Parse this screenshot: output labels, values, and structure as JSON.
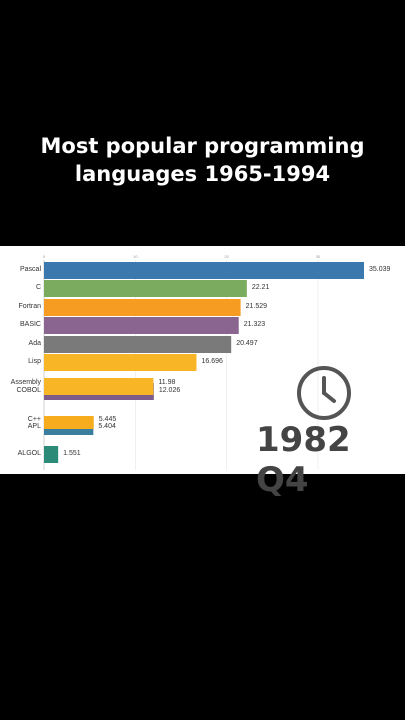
{
  "header": {
    "title_line1": "Most popular programming",
    "title_line2": "languages 1965-1994"
  },
  "period_label": "1982 Q4",
  "icons": {
    "clock": "clock-icon"
  },
  "colors": {
    "background": "#000000",
    "panel": "#ffffff",
    "period_text": "#444444",
    "clock": "#555555"
  },
  "chart_data": {
    "type": "bar",
    "orientation": "horizontal",
    "x_ticks": [
      "0",
      "10",
      "20",
      "30"
    ],
    "xlim": [
      0,
      35
    ],
    "bars": [
      {
        "label": "Pascal",
        "value": 35.039,
        "value_label": "35.039",
        "color": "#3a78ad"
      },
      {
        "label": "C",
        "value": 22.21,
        "value_label": "22.21",
        "color": "#7bab5e"
      },
      {
        "label": "Fortran",
        "value": 21.529,
        "value_label": "21.529",
        "color": "#f69c22"
      },
      {
        "label": "BASIC",
        "value": 21.323,
        "value_label": "21.323",
        "color": "#8a6590"
      },
      {
        "label": "Ada",
        "value": 20.497,
        "value_label": "20.497",
        "color": "#7a7a7a"
      },
      {
        "label": "Lisp",
        "value": 16.696,
        "value_label": "16.696",
        "color": "#f8b525"
      },
      {
        "label": "Assembly",
        "value": 11.98,
        "value_label": "11.98",
        "color": "#f8b525"
      },
      {
        "label": "COBOL",
        "value": 12.026,
        "value_label": "12.026",
        "color": "#7d5c8c"
      },
      {
        "label": "C++",
        "value": 5.445,
        "value_label": "5.445",
        "color": "#f6ac1c"
      },
      {
        "label": "APL",
        "value": 5.404,
        "value_label": "5.404",
        "color": "#3a7e9e"
      },
      {
        "label": "ALGOL",
        "value": 1.551,
        "value_label": "1.551",
        "color": "#2c8b78"
      }
    ]
  }
}
